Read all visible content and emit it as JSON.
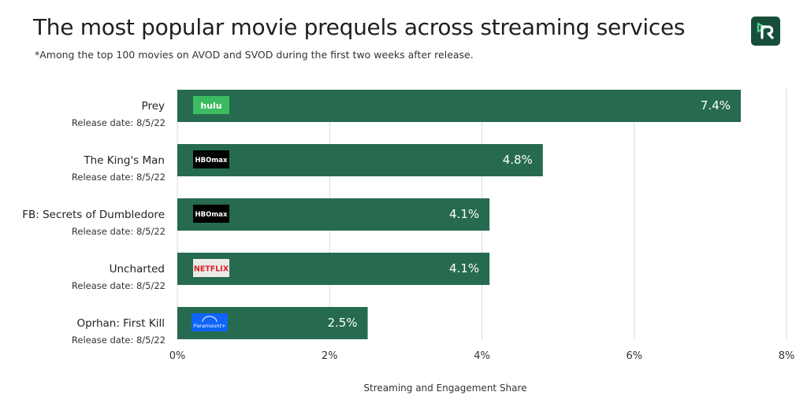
{
  "title": "The most popular movie prequels across streaming services",
  "subtitle": "*Among the top 100 movies on AVOD and SVOD during the first two weeks after release.",
  "logo_icon": "reelgood-logo-icon",
  "chart_data": {
    "type": "bar",
    "orientation": "horizontal",
    "categories": [
      "Prey",
      "The King's Man",
      "FB: Secrets of Dumbledore",
      "Uncharted",
      "Oprhan: First Kill"
    ],
    "release_dates": [
      "Release date: 8/5/22",
      "Release date: 8/5/22",
      "Release date: 8/5/22",
      "Release date: 8/5/22",
      "Release date: 8/5/22"
    ],
    "services": [
      "hulu",
      "HBOmax",
      "HBOmax",
      "NETFLIX",
      "Paramount+"
    ],
    "values": [
      7.4,
      4.8,
      4.1,
      4.1,
      2.5
    ],
    "value_labels": [
      "7.4%",
      "4.8%",
      "4.1%",
      "4.1%",
      "2.5%"
    ],
    "xlabel": "Streaming and Engagement Share",
    "xlim": [
      0,
      8
    ],
    "xticks": [
      "0%",
      "2%",
      "4%",
      "6%",
      "8%"
    ],
    "grid": true,
    "bar_color": "#266b4f"
  },
  "colors": {
    "bar": "#266b4f",
    "hulu": "#3dbb61",
    "hbomax": "#000000",
    "netflix_bg": "#ecebe8",
    "netflix_text": "#d81f26",
    "paramount": "#0f64fa",
    "grid": "#d9d9d9"
  }
}
